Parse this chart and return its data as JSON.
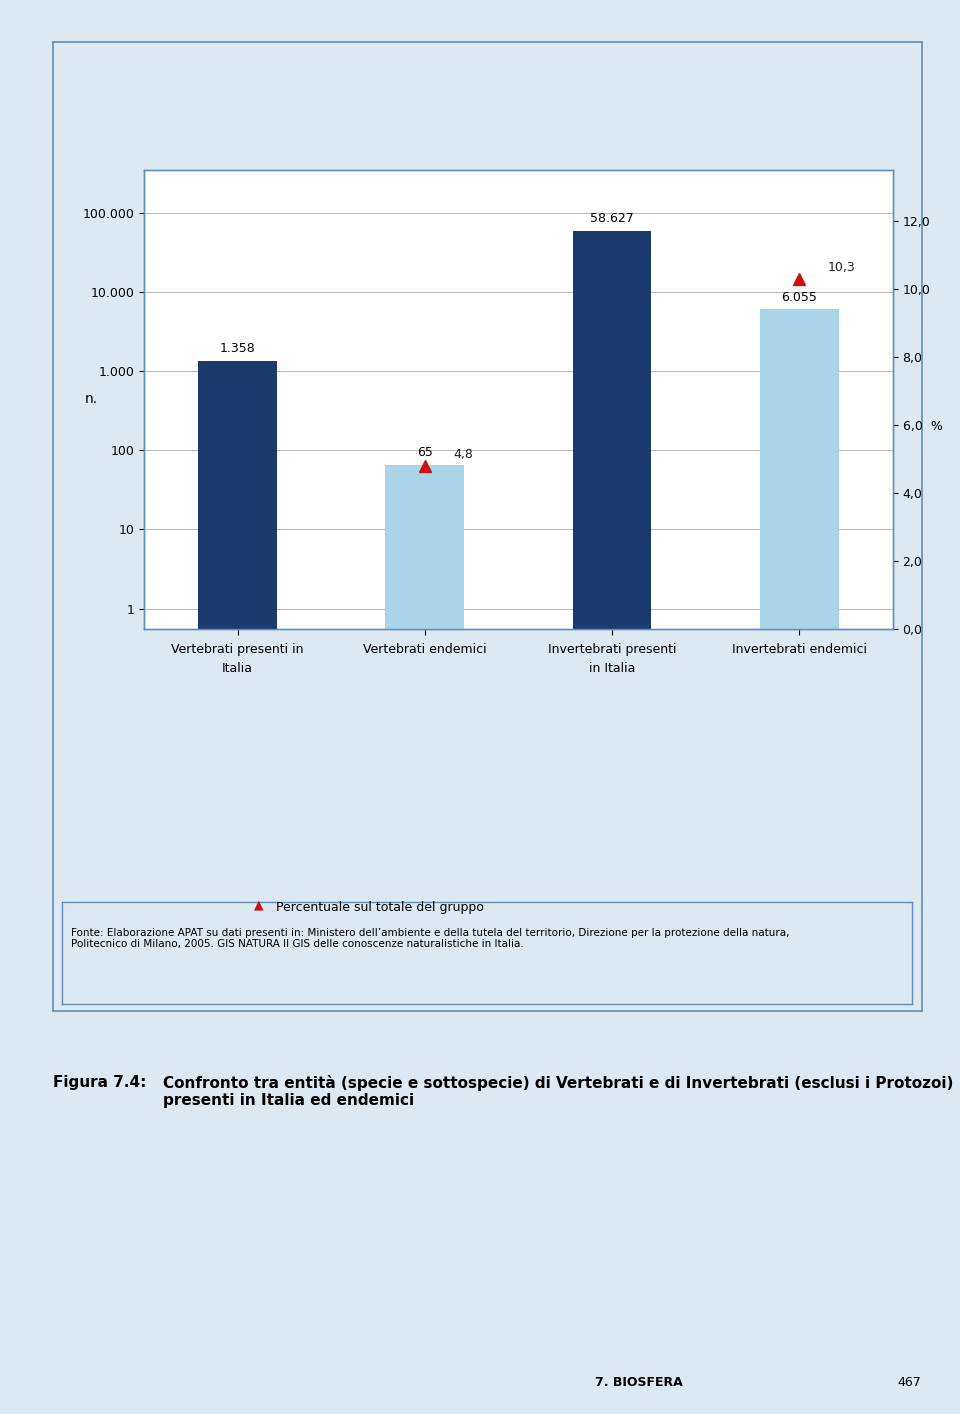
{
  "categories": [
    "Vertebrati presenti in\nItalia",
    "Vertebrati endemici",
    "Invertebrati presenti\nin Italia",
    "Invertebrati endemici"
  ],
  "bar_values": [
    1358,
    65,
    58627,
    6055
  ],
  "bar_colors": [
    "#1b3a6e",
    "#aad4e8",
    "#1b3a6e",
    "#aad4e8"
  ],
  "bar_labels": [
    "1.358",
    "65",
    "58.627",
    "6.055"
  ],
  "pct_values": [
    null,
    4.8,
    null,
    10.3
  ],
  "pct_labels": [
    null,
    "4,8",
    null,
    "10,3"
  ],
  "ylabel_left": "n.",
  "yticks_left": [
    1,
    10,
    100,
    1000,
    10000,
    100000
  ],
  "yticks_left_labels": [
    "1",
    "10",
    "100",
    "1.000",
    "10.000",
    "100.000"
  ],
  "yticks_right": [
    0.0,
    2.0,
    4.0,
    6.0,
    8.0,
    10.0,
    12.0
  ],
  "yticks_right_labels": [
    "0,0",
    "2,0",
    "4,0",
    "6,0  %",
    "8,0",
    "10,0",
    "12,0"
  ],
  "bg_color": "#dce8f2",
  "plot_bg_color": "#ffffff",
  "border_color": "#6090b8",
  "legend_label": "Percentuale sul totale del gruppo",
  "triangle_color": "#cc1111",
  "source_text": "Fonte: Elaborazione APAT su dati presenti in: Ministero dell’ambiente e della tutela del territorio, Direzione per la protezione della natura,\nPolitecnico di Milano, 2005. GIS NATURA II GIS delle conoscenze naturalistiche in Italia.",
  "figure_label": "Figura 7.4:",
  "figure_caption": "Confronto tra entità (specie e sottospecie) di Vertebrati e di Invertebrati (esclusi i Protozoi)\npresenti in Italia ed endemici",
  "footer_text": "7. BIOSFERA",
  "footer_page": "467"
}
